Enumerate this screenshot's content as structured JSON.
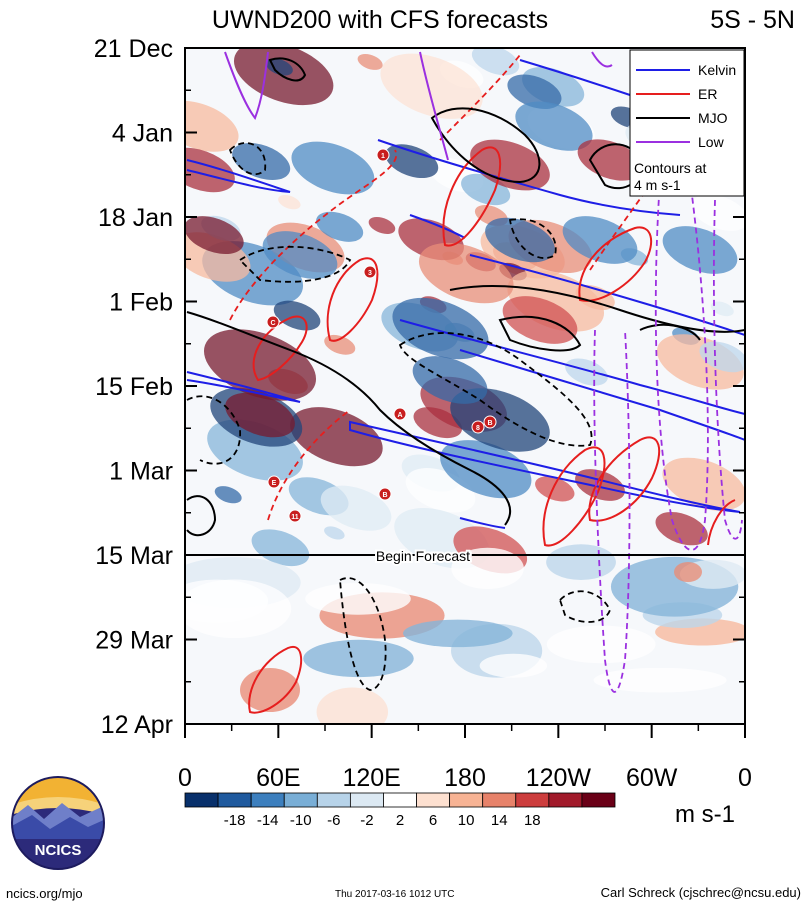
{
  "chart_data": {
    "type": "heatmap",
    "title": "UWND200 with CFS forecasts",
    "region": "5S - 5N",
    "y_axis_labels": [
      "21 Dec",
      "4 Jan",
      "18 Jan",
      "1 Feb",
      "15 Feb",
      "1 Mar",
      "15 Mar",
      "29 Mar",
      "12 Apr"
    ],
    "x_axis_labels": [
      "0",
      "60E",
      "120E",
      "180",
      "120W",
      "60W",
      "0"
    ],
    "x_range_deg_east": [
      0,
      360
    ],
    "forecast_marker_label": "Begin Forecast",
    "forecast_start": "15 Mar",
    "legend": {
      "position": "top-right",
      "entries": [
        {
          "name": "Kelvin",
          "color": "#1e1ee6"
        },
        {
          "name": "ER",
          "color": "#e61e1e"
        },
        {
          "name": "MJO",
          "color": "#000000"
        },
        {
          "name": "Low",
          "color": "#9b30e0"
        }
      ],
      "note_line1": "Contours at",
      "note_line2": "4 m s-1"
    },
    "colorbar": {
      "ticks": [
        "-18",
        "-14",
        "-10",
        "-6",
        "-2",
        "2",
        "6",
        "10",
        "14",
        "18"
      ],
      "colors": [
        "#08306b",
        "#1f5a9e",
        "#3c7fbe",
        "#79aed6",
        "#b7d3e9",
        "#dce9f3",
        "#ffffff",
        "#fde0d0",
        "#f7b394",
        "#e7826a",
        "#cc3d3d",
        "#a11a2a",
        "#6a0017"
      ],
      "units": "m s-1"
    },
    "contour_markers": [
      "1",
      "3",
      "C",
      "A",
      "8",
      "B",
      "E",
      "11",
      "B"
    ]
  },
  "footer": {
    "site": "ncics.org/mjo",
    "timestamp": "Thu 2017-03-16 1012 UTC",
    "author": "Carl Schreck (cjschrec@ncsu.edu)"
  },
  "logo": {
    "text": "NCICS"
  }
}
